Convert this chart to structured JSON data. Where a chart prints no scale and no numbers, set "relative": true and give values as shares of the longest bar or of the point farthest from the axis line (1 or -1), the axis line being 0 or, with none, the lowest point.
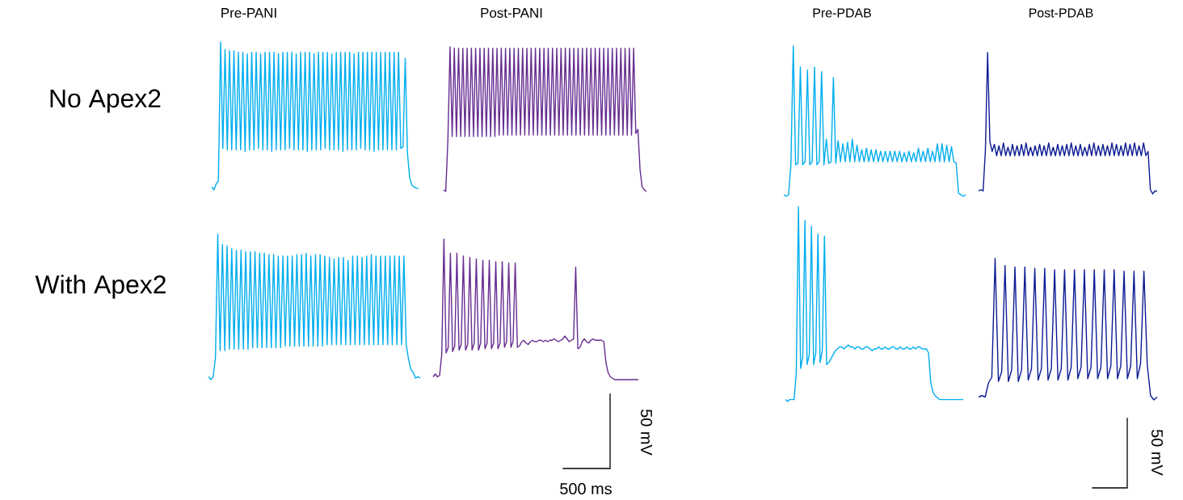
{
  "chart_data": [
    {
      "type": "line",
      "relative": true,
      "title": "Pre-PANI",
      "ylabel": "No Apex2",
      "categories": [
        null,
        null,
        null,
        null,
        null,
        null,
        null,
        null,
        null,
        null,
        null,
        null,
        null,
        null,
        null,
        null,
        null,
        null,
        null,
        null,
        null,
        null,
        null,
        null,
        null,
        null,
        null,
        null,
        null,
        null,
        null,
        null,
        null,
        null,
        null,
        null,
        null,
        null,
        null,
        null,
        null,
        null,
        null,
        null,
        null,
        null,
        null,
        null,
        null,
        null,
        null,
        null,
        null,
        null,
        null,
        null,
        null,
        null,
        null,
        null,
        null,
        null,
        null,
        null,
        null,
        null,
        null,
        null,
        null,
        null,
        null,
        null,
        null,
        null,
        null,
        null,
        null,
        null,
        null,
        null,
        null,
        null,
        null,
        null,
        null,
        null,
        null,
        null,
        null,
        null,
        null,
        null,
        null,
        null
      ],
      "series": [
        {
          "color": "#00aeef",
          "values": [
            0.02,
            0.0,
            0.04,
            0.06,
            1.0,
            0.28,
            0.95,
            0.27,
            0.94,
            0.27,
            0.94,
            0.27,
            0.93,
            0.27,
            0.93,
            0.26,
            0.92,
            0.27,
            0.93,
            0.27,
            0.93,
            0.28,
            0.92,
            0.27,
            0.93,
            0.27,
            0.93,
            0.26,
            0.93,
            0.27,
            0.92,
            0.27,
            0.93,
            0.27,
            0.93,
            0.28,
            0.93,
            0.27,
            0.92,
            0.27,
            0.93,
            0.27,
            0.93,
            0.26,
            0.93,
            0.27,
            0.92,
            0.27,
            0.93,
            0.27,
            0.93,
            0.28,
            0.93,
            0.27,
            0.92,
            0.27,
            0.93,
            0.27,
            0.93,
            0.26,
            0.93,
            0.27,
            0.93,
            0.27,
            0.92,
            0.27,
            0.93,
            0.28,
            0.93,
            0.27,
            0.93,
            0.27,
            0.93,
            0.26,
            0.93,
            0.27,
            0.93,
            0.27,
            0.93,
            0.27,
            0.93,
            0.27,
            0.93,
            0.27,
            0.93,
            0.28,
            0.29,
            0.89,
            0.25,
            0.08,
            0.03,
            0.02,
            0.01,
            0.01
          ]
        }
      ]
    },
    {
      "type": "line",
      "relative": true,
      "title": "Post-PANI",
      "categories": [
        null,
        null,
        null,
        null,
        null,
        null,
        null,
        null,
        null,
        null,
        null,
        null,
        null,
        null,
        null,
        null,
        null,
        null,
        null,
        null,
        null,
        null,
        null,
        null,
        null,
        null,
        null,
        null,
        null,
        null,
        null,
        null,
        null,
        null,
        null,
        null,
        null,
        null,
        null,
        null,
        null,
        null,
        null,
        null,
        null,
        null,
        null,
        null,
        null,
        null,
        null,
        null,
        null,
        null,
        null,
        null,
        null,
        null,
        null,
        null,
        null,
        null,
        null,
        null,
        null,
        null,
        null,
        null,
        null,
        null,
        null,
        null,
        null,
        null,
        null,
        null,
        null,
        null,
        null,
        null,
        null,
        null,
        null,
        null,
        null,
        null,
        null,
        null,
        null,
        null,
        null,
        null,
        null,
        null,
        null,
        null
      ],
      "series": [
        {
          "color": "#662d91",
          "values": [
            0.01,
            0.0,
            0.36,
            1.0,
            0.38,
            0.99,
            0.38,
            0.99,
            0.38,
            0.99,
            0.38,
            0.99,
            0.38,
            0.99,
            0.38,
            0.99,
            0.38,
            0.99,
            0.38,
            0.99,
            0.38,
            0.99,
            0.38,
            0.99,
            0.38,
            0.99,
            0.39,
            0.99,
            0.39,
            0.99,
            0.39,
            0.99,
            0.39,
            0.99,
            0.39,
            0.99,
            0.39,
            0.99,
            0.39,
            0.99,
            0.39,
            0.99,
            0.39,
            0.99,
            0.39,
            0.99,
            0.39,
            0.99,
            0.39,
            0.99,
            0.39,
            0.99,
            0.39,
            0.99,
            0.39,
            0.99,
            0.39,
            0.99,
            0.39,
            0.99,
            0.39,
            0.99,
            0.39,
            0.99,
            0.39,
            0.99,
            0.39,
            0.99,
            0.39,
            0.99,
            0.39,
            0.99,
            0.39,
            0.99,
            0.39,
            0.99,
            0.39,
            0.99,
            0.39,
            0.99,
            0.39,
            0.99,
            0.39,
            0.99,
            0.39,
            0.99,
            0.39,
            0.99,
            0.39,
            0.99,
            0.4,
            0.43,
            0.15,
            0.03,
            0.01,
            0.0
          ]
        }
      ]
    },
    {
      "type": "line",
      "relative": true,
      "ylabel": "With Apex2",
      "categories": [
        null,
        null,
        null,
        null,
        null,
        null,
        null,
        null,
        null,
        null,
        null,
        null,
        null,
        null,
        null,
        null,
        null,
        null,
        null,
        null,
        null,
        null,
        null,
        null,
        null,
        null,
        null,
        null,
        null,
        null,
        null,
        null,
        null,
        null,
        null,
        null,
        null,
        null,
        null,
        null,
        null,
        null,
        null,
        null,
        null,
        null,
        null,
        null,
        null,
        null,
        null,
        null,
        null,
        null,
        null,
        null,
        null,
        null,
        null,
        null,
        null,
        null,
        null,
        null,
        null,
        null,
        null,
        null,
        null,
        null,
        null,
        null,
        null,
        null,
        null,
        null,
        null,
        null,
        null,
        null,
        null,
        null,
        null,
        null,
        null,
        null,
        null,
        null,
        null,
        null,
        null,
        null
      ],
      "series": [
        {
          "color": "#00aeef",
          "values": [
            0.02,
            0.0,
            0.02,
            0.15,
            1.0,
            0.2,
            0.93,
            0.2,
            0.92,
            0.21,
            0.9,
            0.21,
            0.89,
            0.21,
            0.89,
            0.21,
            0.88,
            0.21,
            0.88,
            0.22,
            0.88,
            0.22,
            0.87,
            0.22,
            0.87,
            0.22,
            0.86,
            0.22,
            0.86,
            0.22,
            0.85,
            0.22,
            0.85,
            0.23,
            0.85,
            0.23,
            0.85,
            0.23,
            0.86,
            0.23,
            0.86,
            0.23,
            0.87,
            0.23,
            0.85,
            0.23,
            0.86,
            0.23,
            0.86,
            0.23,
            0.85,
            0.24,
            0.84,
            0.24,
            0.83,
            0.24,
            0.84,
            0.24,
            0.84,
            0.24,
            0.82,
            0.24,
            0.85,
            0.24,
            0.85,
            0.24,
            0.84,
            0.24,
            0.85,
            0.24,
            0.86,
            0.24,
            0.85,
            0.24,
            0.85,
            0.24,
            0.85,
            0.24,
            0.85,
            0.24,
            0.85,
            0.24,
            0.85,
            0.24,
            0.85,
            0.24,
            0.14,
            0.07,
            0.05,
            0.01,
            0.02,
            0.01
          ]
        }
      ]
    },
    {
      "type": "line",
      "relative": true,
      "annotations": [
        "50 mV",
        "500 ms"
      ],
      "categories": [
        null,
        null,
        null,
        null,
        null,
        null,
        null,
        null,
        null,
        null,
        null,
        null,
        null,
        null,
        null,
        null,
        null,
        null,
        null,
        null,
        null,
        null,
        null,
        null,
        null,
        null,
        null,
        null,
        null,
        null,
        null,
        null,
        null,
        null,
        null,
        null,
        null,
        null,
        null,
        null,
        null,
        null,
        null,
        null,
        null,
        null,
        null,
        null,
        null,
        null,
        null,
        null,
        null,
        null,
        null,
        null,
        null,
        null,
        null,
        null,
        null,
        null,
        null,
        null,
        null,
        null,
        null,
        null,
        null,
        null,
        null,
        null,
        null,
        null,
        null,
        null,
        null,
        null,
        null,
        null,
        null,
        null,
        null,
        null,
        null,
        null,
        null,
        null,
        null,
        null,
        null,
        null,
        null,
        null,
        null,
        null
      ],
      "series": [
        {
          "color": "#662d91",
          "values": [
            0.02,
            0.04,
            0.02,
            0.03,
            0.18,
            1.0,
            0.19,
            0.23,
            0.9,
            0.2,
            0.24,
            0.9,
            0.21,
            0.25,
            0.88,
            0.21,
            0.25,
            0.87,
            0.21,
            0.26,
            0.86,
            0.21,
            0.26,
            0.85,
            0.22,
            0.26,
            0.85,
            0.22,
            0.26,
            0.84,
            0.22,
            0.26,
            0.84,
            0.23,
            0.27,
            0.83,
            0.23,
            0.27,
            0.83,
            0.23,
            0.24,
            0.27,
            0.28,
            0.26,
            0.25,
            0.27,
            0.28,
            0.27,
            0.27,
            0.28,
            0.28,
            0.27,
            0.28,
            0.27,
            0.28,
            0.28,
            0.29,
            0.28,
            0.27,
            0.28,
            0.29,
            0.31,
            0.29,
            0.27,
            0.28,
            0.29,
            0.8,
            0.22,
            0.23,
            0.27,
            0.29,
            0.27,
            0.26,
            0.28,
            0.29,
            0.28,
            0.28,
            0.28,
            0.28,
            0.27,
            0.12,
            0.05,
            0.02,
            0.01,
            0.0,
            0.0,
            0.0,
            0.0,
            0.0,
            0.0,
            0.0,
            0.0,
            0.0,
            0.0,
            0.0,
            0.0
          ]
        }
      ]
    },
    {
      "type": "line",
      "relative": true,
      "title": "Pre-PDAB",
      "categories": [
        null,
        null,
        null,
        null,
        null,
        null,
        null,
        null,
        null,
        null,
        null,
        null,
        null,
        null,
        null,
        null,
        null,
        null,
        null,
        null,
        null,
        null,
        null,
        null,
        null,
        null,
        null,
        null,
        null,
        null,
        null,
        null,
        null,
        null,
        null,
        null,
        null,
        null,
        null,
        null,
        null,
        null,
        null,
        null,
        null,
        null,
        null,
        null,
        null,
        null,
        null,
        null,
        null,
        null,
        null,
        null,
        null,
        null,
        null,
        null,
        null,
        null,
        null,
        null,
        null,
        null,
        null,
        null,
        null,
        null,
        null,
        null,
        null,
        null,
        null,
        null,
        null,
        null
      ],
      "series": [
        {
          "color": "#00aeef",
          "values": [
            0.01,
            0.0,
            0.01,
            0.21,
            1.0,
            0.21,
            0.22,
            0.86,
            0.21,
            0.23,
            0.84,
            0.21,
            0.23,
            0.86,
            0.21,
            0.23,
            0.83,
            0.21,
            0.38,
            0.22,
            0.23,
            0.79,
            0.22,
            0.37,
            0.23,
            0.35,
            0.23,
            0.36,
            0.23,
            0.38,
            0.23,
            0.34,
            0.23,
            0.31,
            0.23,
            0.32,
            0.23,
            0.31,
            0.23,
            0.31,
            0.23,
            0.3,
            0.23,
            0.3,
            0.23,
            0.3,
            0.23,
            0.3,
            0.23,
            0.3,
            0.23,
            0.29,
            0.23,
            0.3,
            0.23,
            0.29,
            0.23,
            0.32,
            0.23,
            0.3,
            0.23,
            0.32,
            0.23,
            0.3,
            0.23,
            0.35,
            0.23,
            0.35,
            0.23,
            0.34,
            0.23,
            0.33,
            0.23,
            0.22,
            0.02,
            0.01,
            0.0,
            0.01
          ]
        }
      ]
    },
    {
      "type": "line",
      "relative": true,
      "title": "Post-PDAB",
      "categories": [
        null,
        null,
        null,
        null,
        null,
        null,
        null,
        null,
        null,
        null,
        null,
        null,
        null,
        null,
        null,
        null,
        null,
        null,
        null,
        null,
        null,
        null,
        null,
        null,
        null,
        null,
        null,
        null,
        null,
        null,
        null,
        null,
        null,
        null,
        null,
        null,
        null,
        null,
        null,
        null,
        null,
        null,
        null,
        null,
        null,
        null,
        null,
        null,
        null,
        null,
        null,
        null,
        null,
        null,
        null,
        null,
        null,
        null,
        null,
        null,
        null,
        null,
        null,
        null,
        null,
        null,
        null,
        null,
        null,
        null,
        null,
        null,
        null,
        null,
        null,
        null,
        null,
        null,
        null,
        null
      ],
      "series": [
        {
          "color": "#0c1c94",
          "values": [
            0.02,
            0.03,
            0.02,
            0.3,
            1.0,
            0.37,
            0.3,
            0.35,
            0.27,
            0.34,
            0.27,
            0.36,
            0.27,
            0.33,
            0.27,
            0.35,
            0.27,
            0.34,
            0.27,
            0.35,
            0.27,
            0.36,
            0.27,
            0.33,
            0.27,
            0.34,
            0.27,
            0.35,
            0.27,
            0.34,
            0.27,
            0.36,
            0.27,
            0.33,
            0.27,
            0.35,
            0.27,
            0.34,
            0.27,
            0.35,
            0.27,
            0.36,
            0.27,
            0.34,
            0.27,
            0.35,
            0.27,
            0.33,
            0.27,
            0.35,
            0.27,
            0.36,
            0.27,
            0.34,
            0.27,
            0.35,
            0.27,
            0.34,
            0.27,
            0.36,
            0.27,
            0.35,
            0.27,
            0.34,
            0.27,
            0.36,
            0.27,
            0.35,
            0.27,
            0.36,
            0.27,
            0.34,
            0.27,
            0.36,
            0.27,
            0.3,
            0.03,
            0.0,
            0.02,
            0.02
          ]
        }
      ]
    },
    {
      "type": "line",
      "relative": true,
      "categories": [
        null,
        null,
        null,
        null,
        null,
        null,
        null,
        null,
        null,
        null,
        null,
        null,
        null,
        null,
        null,
        null,
        null,
        null,
        null,
        null,
        null,
        null,
        null,
        null,
        null,
        null,
        null,
        null,
        null,
        null,
        null,
        null,
        null,
        null,
        null,
        null,
        null,
        null,
        null,
        null,
        null,
        null,
        null,
        null,
        null,
        null,
        null,
        null,
        null,
        null,
        null,
        null,
        null,
        null,
        null,
        null,
        null,
        null,
        null,
        null,
        null,
        null,
        null,
        null,
        null,
        null,
        null,
        null,
        null,
        null,
        null,
        null,
        null,
        null,
        null,
        null,
        null,
        null,
        null,
        null,
        null,
        null,
        null
      ],
      "series": [
        {
          "color": "#00aeef",
          "values": [
            0.01,
            0.0,
            0.01,
            0.01,
            0.01,
            0.15,
            1.0,
            0.17,
            0.23,
            0.93,
            0.19,
            0.24,
            0.9,
            0.19,
            0.25,
            0.86,
            0.2,
            0.26,
            0.85,
            0.19,
            0.2,
            0.22,
            0.24,
            0.26,
            0.27,
            0.28,
            0.28,
            0.27,
            0.28,
            0.29,
            0.28,
            0.28,
            0.27,
            0.28,
            0.28,
            0.27,
            0.27,
            0.28,
            0.28,
            0.27,
            0.26,
            0.27,
            0.27,
            0.28,
            0.27,
            0.27,
            0.28,
            0.27,
            0.27,
            0.28,
            0.28,
            0.27,
            0.27,
            0.28,
            0.27,
            0.27,
            0.28,
            0.27,
            0.27,
            0.28,
            0.27,
            0.28,
            0.28,
            0.27,
            0.27,
            0.27,
            0.25,
            0.1,
            0.05,
            0.03,
            0.02,
            0.01,
            0.01,
            0.01,
            0.01,
            0.01,
            0.01,
            0.01,
            0.01,
            0.01,
            0.01,
            0.01,
            0.01
          ]
        }
      ]
    },
    {
      "type": "line",
      "relative": true,
      "annotations": [
        "50 mV"
      ],
      "categories": [
        null,
        null,
        null,
        null,
        null,
        null,
        null,
        null,
        null,
        null,
        null,
        null,
        null,
        null,
        null,
        null,
        null,
        null,
        null,
        null,
        null,
        null,
        null,
        null,
        null,
        null,
        null,
        null,
        null,
        null,
        null,
        null,
        null,
        null,
        null,
        null,
        null,
        null,
        null,
        null,
        null,
        null,
        null,
        null,
        null,
        null,
        null,
        null,
        null,
        null,
        null,
        null,
        null,
        null,
        null
      ],
      "series": [
        {
          "color": "#0c1c94",
          "values": [
            0.02,
            0.03,
            0.02,
            0.12,
            0.16,
            1.0,
            0.13,
            0.2,
            0.95,
            0.13,
            0.21,
            0.94,
            0.13,
            0.21,
            0.94,
            0.14,
            0.22,
            0.93,
            0.14,
            0.22,
            0.93,
            0.14,
            0.22,
            0.92,
            0.14,
            0.22,
            0.92,
            0.14,
            0.23,
            0.92,
            0.15,
            0.23,
            0.92,
            0.15,
            0.23,
            0.92,
            0.15,
            0.23,
            0.92,
            0.15,
            0.24,
            0.92,
            0.15,
            0.24,
            0.91,
            0.15,
            0.24,
            0.91,
            0.15,
            0.26,
            0.91,
            0.25,
            0.03,
            0.0,
            0.02
          ]
        }
      ]
    }
  ]
}
